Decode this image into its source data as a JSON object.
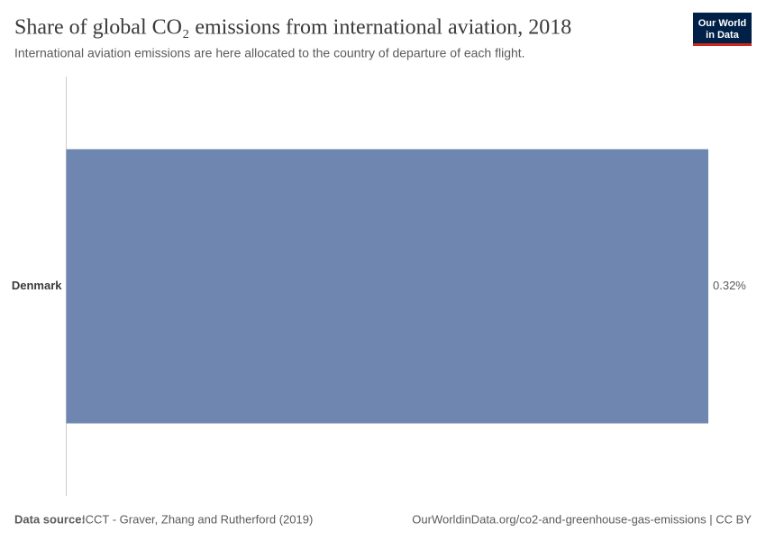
{
  "chart_data": {
    "type": "bar",
    "orientation": "horizontal",
    "title": "Share of global CO₂ emissions from international aviation, 2018",
    "subtitle": "International aviation emissions are here allocated to the country of departure of each flight.",
    "categories": [
      "Denmark"
    ],
    "values": [
      0.32
    ],
    "value_labels": [
      "0.32%"
    ],
    "color": "#6f87b0",
    "logo_lines": [
      "Our World",
      "in Data"
    ],
    "source_label": "Data source:",
    "source": "ICCT - Graver, Zhang and Rutherford (2019)",
    "footer_right": "OurWorldinData.org/co2-and-greenhouse-gas-emissions | CC BY"
  }
}
